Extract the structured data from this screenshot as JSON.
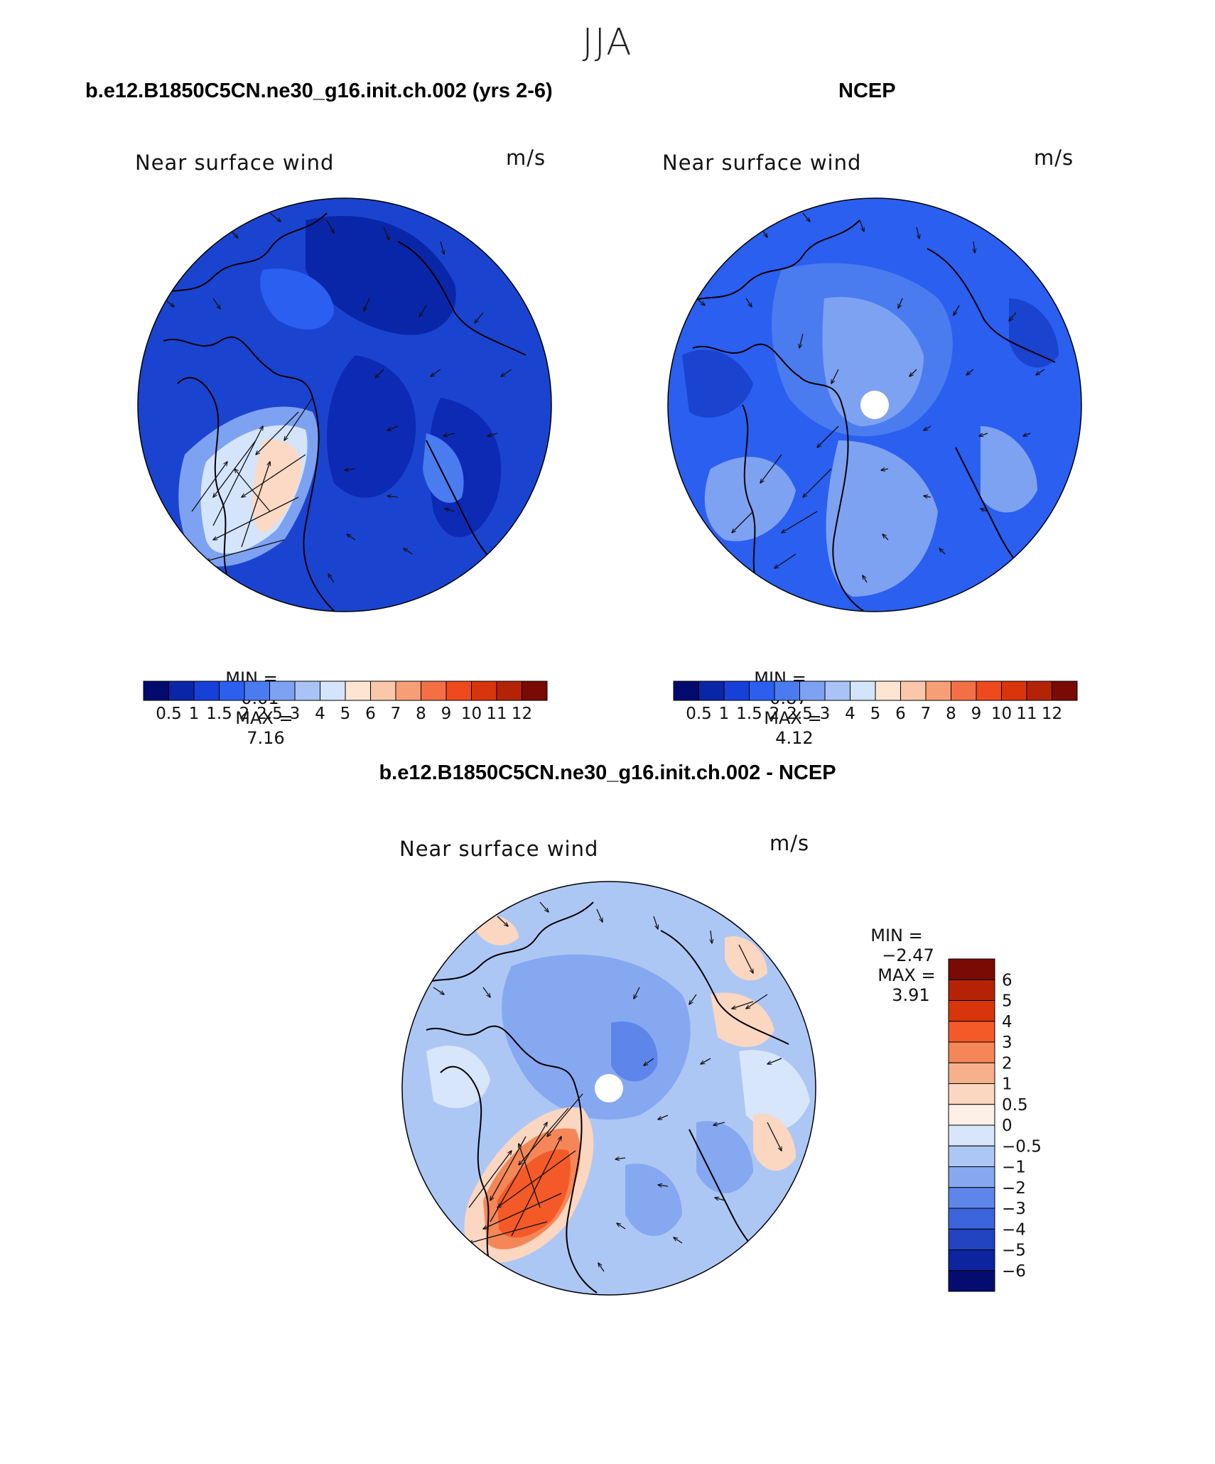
{
  "page": {
    "season": "JJA",
    "left_title": "b.e12.B1850C5CN.ne30_g16.init.ch.002 (yrs 2-6)",
    "right_title": "NCEP",
    "diff_title": "b.e12.B1850C5CN.ne30_g16.init.ch.002 - NCEP"
  },
  "colors": {
    "abs_scale": [
      "#020a6e",
      "#0a26a8",
      "#1640d8",
      "#2a5ff0",
      "#4a7cf0",
      "#7ea2f2",
      "#a9c3f7",
      "#d4e4fb",
      "#fde5d2",
      "#fbc7aa",
      "#f79e76",
      "#f46f45",
      "#ee4a1e",
      "#d9350c",
      "#b52306",
      "#7a0a04"
    ],
    "diff_scale": [
      "#7a0a04",
      "#b52306",
      "#d9350c",
      "#f45a28",
      "#f58658",
      "#f7b08c",
      "#fbd6c0",
      "#fdf0e6",
      "#d8e6fb",
      "#adc7f5",
      "#86a8f0",
      "#5e86ea",
      "#3c64dc",
      "#2244c0",
      "#0c24a0",
      "#040c70"
    ]
  },
  "chart_data": [
    {
      "type": "heatmap",
      "projection": "polar-stereographic",
      "title": "b.e12.B1850C5CN.ne30_g16.init.ch.002 (yrs 2-6)",
      "panel_label": "Near surface wind",
      "units": "m/s",
      "min_label": "MIN =",
      "min_value": "0.01",
      "max_label": "MAX =",
      "max_value": "7.16",
      "min": 0.01,
      "max": 7.16,
      "colorbar_levels": [
        "0.5",
        "1",
        "1.5",
        "2",
        "2.5",
        "3",
        "4",
        "5",
        "6",
        "7",
        "8",
        "9",
        "10",
        "11",
        "12"
      ]
    },
    {
      "type": "heatmap",
      "projection": "polar-stereographic",
      "title": "NCEP",
      "panel_label": "Near surface wind",
      "units": "m/s",
      "min_label": "MIN =",
      "min_value": "0.87",
      "max_label": "MAX =",
      "max_value": "4.12",
      "min": 0.87,
      "max": 4.12,
      "colorbar_levels": [
        "0.5",
        "1",
        "1.5",
        "2",
        "2.5",
        "3",
        "4",
        "5",
        "6",
        "7",
        "8",
        "9",
        "10",
        "11",
        "12"
      ]
    },
    {
      "type": "heatmap",
      "projection": "polar-stereographic",
      "title": "b.e12.B1850C5CN.ne30_g16.init.ch.002 - NCEP",
      "panel_label": "Near surface wind",
      "units": "m/s",
      "min_label": "MIN =",
      "min_value": "−2.47",
      "max_label": "MAX =",
      "max_value": "3.91",
      "min": -2.47,
      "max": 3.91,
      "colorbar_levels": [
        "6",
        "5",
        "4",
        "3",
        "2",
        "1",
        "0.5",
        "0",
        "−0.5",
        "−1",
        "−2",
        "−3",
        "−4",
        "−5",
        "−6"
      ]
    }
  ]
}
